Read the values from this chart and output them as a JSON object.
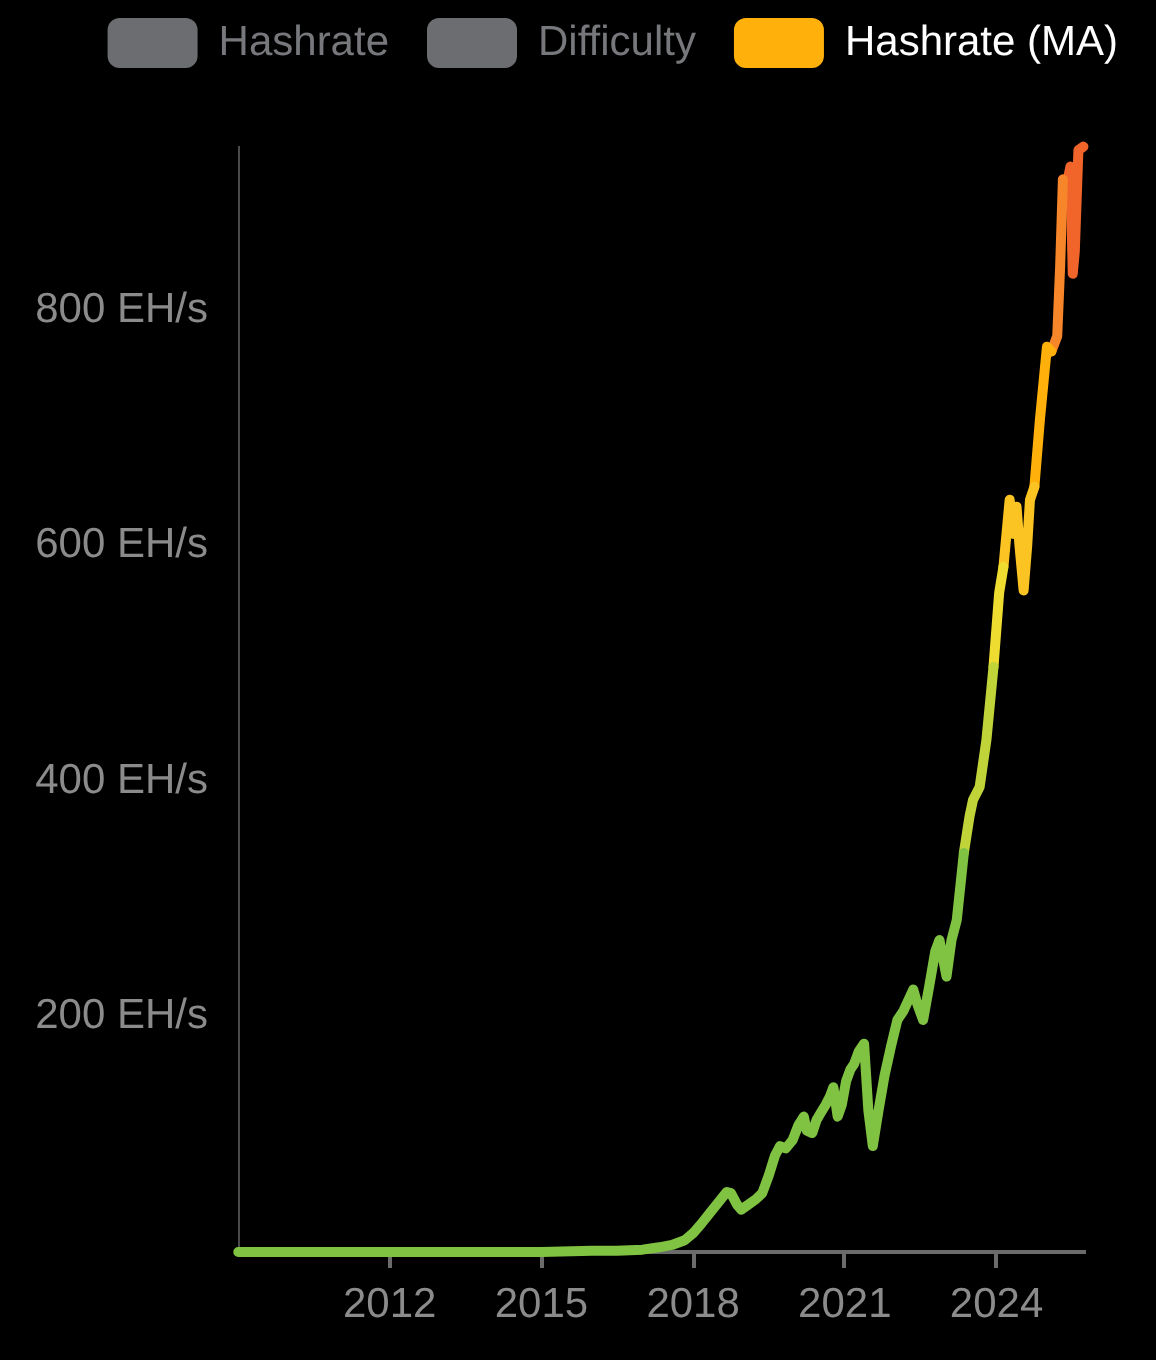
{
  "chart_data": {
    "type": "line",
    "legend": "top",
    "marker": "none",
    "xlim": [
      "2009-01-01",
      "2025-09-20"
    ],
    "xticks": [
      "2012",
      "2015",
      "2018",
      "2021",
      "2024"
    ],
    "ylim": [
      0,
      939
    ],
    "yticks": [
      {
        "value": 200,
        "label": "200 EH/s"
      },
      {
        "value": 400,
        "label": "400 EH/s"
      },
      {
        "value": 600,
        "label": "600 EH/s"
      },
      {
        "value": 800,
        "label": "800 EH/s"
      }
    ],
    "x": [
      "2009-01-03",
      "2010-01-01",
      "2011-01-01",
      "2012-01-01",
      "2013-01-01",
      "2014-01-01",
      "2015-01-01",
      "2016-01-01",
      "2016-07-01",
      "2017-01-01",
      "2017-05-01",
      "2017-08-01",
      "2017-11-01",
      "2018-01-01",
      "2018-03-01",
      "2018-05-01",
      "2018-07-01",
      "2018-09-01",
      "2018-10-01",
      "2018-11-15",
      "2018-12-15",
      "2019-02-01",
      "2019-04-01",
      "2019-05-15",
      "2019-07-01",
      "2019-08-15",
      "2019-09-20",
      "2019-11-01",
      "2019-12-20",
      "2020-02-01",
      "2020-03-10",
      "2020-04-01",
      "2020-05-10",
      "2020-06-10",
      "2020-07-10",
      "2020-08-15",
      "2020-09-15",
      "2020-10-10",
      "2020-11-10",
      "2020-12-10",
      "2021-01-10",
      "2021-02-10",
      "2021-03-10",
      "2021-04-10",
      "2021-05-20",
      "2021-06-20",
      "2021-07-22",
      "2021-09-01",
      "2021-10-15",
      "2021-12-01",
      "2022-01-15",
      "2022-03-01",
      "2022-05-10",
      "2022-06-10",
      "2022-07-20",
      "2022-09-01",
      "2022-10-15",
      "2022-11-15",
      "2023-01-05",
      "2023-02-10",
      "2023-03-20",
      "2023-05-10",
      "2023-06-20",
      "2023-07-15",
      "2023-09-01",
      "2023-10-20",
      "2023-12-10",
      "2024-01-20",
      "2024-02-20",
      "2024-04-05",
      "2024-05-01",
      "2024-05-25",
      "2024-06-15",
      "2024-07-15",
      "2024-08-10",
      "2024-08-30",
      "2024-10-01",
      "2024-11-10",
      "2024-12-31",
      "2025-02-01",
      "2025-03-15",
      "2025-04-05",
      "2025-04-25",
      "2025-05-20",
      "2025-06-18",
      "2025-07-05",
      "2025-07-20",
      "2025-08-15",
      "2025-09-20"
    ],
    "series": [
      {
        "name": "Hashrate",
        "color": "#6c6d71",
        "values": [
          null,
          null,
          null,
          null,
          null,
          null,
          null,
          null,
          null,
          null,
          null,
          null,
          null,
          null,
          null,
          null,
          null,
          null,
          null,
          null,
          null,
          null,
          null,
          null,
          null,
          null,
          null,
          null,
          null,
          null,
          null,
          null,
          null,
          null,
          null,
          null,
          null,
          null,
          null,
          null,
          null,
          null,
          null,
          null,
          null,
          null,
          null,
          null,
          null,
          null,
          null,
          null,
          null,
          null,
          null,
          null,
          null,
          null,
          null,
          null,
          null,
          null,
          null,
          null,
          null,
          null,
          null,
          null,
          null,
          null,
          null,
          null,
          null,
          null,
          null,
          null,
          null,
          null,
          null,
          null,
          null,
          null,
          null,
          null,
          null,
          null,
          null,
          null,
          null
        ]
      },
      {
        "name": "Difficulty",
        "color": "#6c6d71",
        "values": [
          null,
          null,
          null,
          null,
          null,
          null,
          null,
          null,
          null,
          null,
          null,
          null,
          null,
          null,
          null,
          null,
          null,
          null,
          null,
          null,
          null,
          null,
          null,
          null,
          null,
          null,
          null,
          null,
          null,
          null,
          null,
          null,
          null,
          null,
          null,
          null,
          null,
          null,
          null,
          null,
          null,
          null,
          null,
          null,
          null,
          null,
          null,
          null,
          null,
          null,
          null,
          null,
          null,
          null,
          null,
          null,
          null,
          null,
          null,
          null,
          null,
          null,
          null,
          null,
          null,
          null,
          null,
          null,
          null,
          null,
          null,
          null,
          null,
          null,
          null,
          null,
          null,
          null,
          null,
          null,
          null,
          null,
          null,
          null,
          null,
          null,
          null,
          null,
          null
        ]
      },
      {
        "color": "#80c342",
        "values": [
          0,
          0,
          0,
          0,
          0,
          0,
          0,
          1,
          1,
          2,
          4,
          6,
          10,
          16,
          24,
          33,
          42,
          51,
          50,
          40,
          36,
          40,
          45,
          50,
          65,
          82,
          90,
          88,
          95,
          108,
          115,
          103,
          101,
          112,
          118,
          125,
          132,
          140,
          115,
          125,
          145,
          155,
          160,
          170,
          177,
          120,
          90,
          120,
          150,
          175,
          197,
          205,
          223,
          210,
          197,
          225,
          255,
          265,
          234,
          265,
          282,
          339,
          null,
          null,
          null,
          null,
          null,
          null,
          null,
          null,
          null,
          null,
          null,
          null,
          null,
          null,
          null,
          null,
          null,
          null,
          null,
          null,
          null,
          null,
          null,
          null,
          null,
          null,
          null
        ]
      },
      {
        "color": "#c0d43a",
        "values": [
          null,
          null,
          null,
          null,
          null,
          null,
          null,
          null,
          null,
          null,
          null,
          null,
          null,
          null,
          null,
          null,
          null,
          null,
          null,
          null,
          null,
          null,
          null,
          null,
          null,
          null,
          null,
          null,
          null,
          null,
          null,
          null,
          null,
          null,
          null,
          null,
          null,
          null,
          null,
          null,
          null,
          null,
          null,
          null,
          null,
          null,
          null,
          null,
          null,
          null,
          null,
          null,
          null,
          null,
          null,
          null,
          null,
          null,
          null,
          null,
          null,
          339,
          370,
          384,
          395,
          435,
          497,
          null,
          null,
          null,
          null,
          null,
          null,
          null,
          null,
          null,
          null,
          null,
          null,
          null,
          null,
          null,
          null,
          null,
          null,
          null,
          null,
          null,
          null
        ]
      },
      {
        "color": "#efdc31",
        "values": [
          null,
          null,
          null,
          null,
          null,
          null,
          null,
          null,
          null,
          null,
          null,
          null,
          null,
          null,
          null,
          null,
          null,
          null,
          null,
          null,
          null,
          null,
          null,
          null,
          null,
          null,
          null,
          null,
          null,
          null,
          null,
          null,
          null,
          null,
          null,
          null,
          null,
          null,
          null,
          null,
          null,
          null,
          null,
          null,
          null,
          null,
          null,
          null,
          null,
          null,
          null,
          null,
          null,
          null,
          null,
          null,
          null,
          null,
          null,
          null,
          null,
          null,
          null,
          null,
          null,
          null,
          497,
          560,
          582,
          null,
          null,
          null,
          null,
          null,
          null,
          null,
          null,
          null,
          null,
          null,
          null,
          null,
          null,
          null,
          null,
          null,
          null,
          null,
          null
        ]
      },
      {
        "color": "#fcc423",
        "values": [
          null,
          null,
          null,
          null,
          null,
          null,
          null,
          null,
          null,
          null,
          null,
          null,
          null,
          null,
          null,
          null,
          null,
          null,
          null,
          null,
          null,
          null,
          null,
          null,
          null,
          null,
          null,
          null,
          null,
          null,
          null,
          null,
          null,
          null,
          null,
          null,
          null,
          null,
          null,
          null,
          null,
          null,
          null,
          null,
          null,
          null,
          null,
          null,
          null,
          null,
          null,
          null,
          null,
          null,
          null,
          null,
          null,
          null,
          null,
          null,
          null,
          null,
          null,
          null,
          null,
          null,
          null,
          null,
          582,
          639,
          610,
          633,
          600,
          562,
          600,
          639,
          650,
          null,
          null,
          null,
          null,
          null,
          null,
          null,
          null,
          null,
          null,
          null,
          null
        ]
      },
      {
        "name": "Hashrate (MA)",
        "color": "#ffb00b",
        "values": [
          null,
          null,
          null,
          null,
          null,
          null,
          null,
          null,
          null,
          null,
          null,
          null,
          null,
          null,
          null,
          null,
          null,
          null,
          null,
          null,
          null,
          null,
          null,
          null,
          null,
          null,
          null,
          null,
          null,
          null,
          null,
          null,
          null,
          null,
          null,
          null,
          null,
          null,
          null,
          null,
          null,
          null,
          null,
          null,
          null,
          null,
          null,
          null,
          null,
          null,
          null,
          null,
          null,
          null,
          null,
          null,
          null,
          null,
          null,
          null,
          null,
          null,
          null,
          null,
          null,
          null,
          null,
          null,
          null,
          null,
          null,
          null,
          null,
          null,
          null,
          null,
          650,
          707,
          769,
          765,
          null,
          null,
          null,
          null,
          null,
          null,
          null,
          null,
          null
        ]
      },
      {
        "color": "#f7862a",
        "values": [
          null,
          null,
          null,
          null,
          null,
          null,
          null,
          null,
          null,
          null,
          null,
          null,
          null,
          null,
          null,
          null,
          null,
          null,
          null,
          null,
          null,
          null,
          null,
          null,
          null,
          null,
          null,
          null,
          null,
          null,
          null,
          null,
          null,
          null,
          null,
          null,
          null,
          null,
          null,
          null,
          null,
          null,
          null,
          null,
          null,
          null,
          null,
          null,
          null,
          null,
          null,
          null,
          null,
          null,
          null,
          null,
          null,
          null,
          null,
          null,
          null,
          null,
          null,
          null,
          null,
          null,
          null,
          null,
          null,
          null,
          null,
          null,
          null,
          null,
          null,
          null,
          null,
          null,
          null,
          765,
          778,
          837,
          911,
          null,
          null,
          null,
          null,
          null,
          null
        ]
      },
      {
        "color": "#f1652b",
        "values": [
          null,
          null,
          null,
          null,
          null,
          null,
          null,
          null,
          null,
          null,
          null,
          null,
          null,
          null,
          null,
          null,
          null,
          null,
          null,
          null,
          null,
          null,
          null,
          null,
          null,
          null,
          null,
          null,
          null,
          null,
          null,
          null,
          null,
          null,
          null,
          null,
          null,
          null,
          null,
          null,
          null,
          null,
          null,
          null,
          null,
          null,
          null,
          null,
          null,
          null,
          null,
          null,
          null,
          null,
          null,
          null,
          null,
          null,
          null,
          null,
          null,
          null,
          null,
          null,
          null,
          null,
          null,
          null,
          null,
          null,
          null,
          null,
          null,
          null,
          null,
          null,
          null,
          null,
          null,
          null,
          null,
          null,
          911,
          905,
          922,
          831,
          850,
          936,
          939
        ]
      }
    ]
  }
}
